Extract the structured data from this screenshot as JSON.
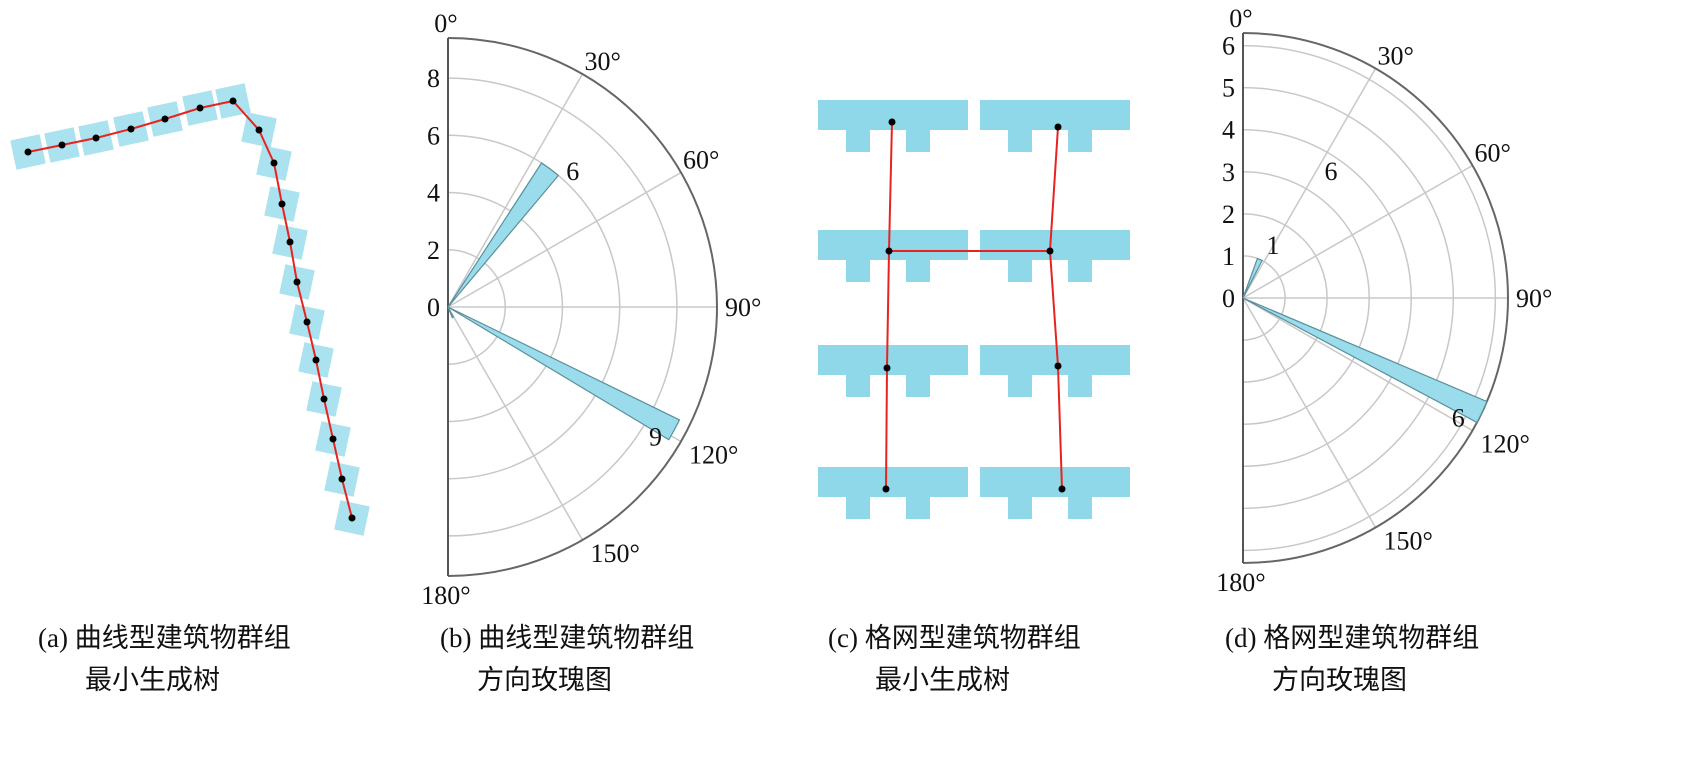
{
  "captions": {
    "a": {
      "line1": "(a) 曲线型建筑物群组",
      "line2": "最小生成树"
    },
    "b": {
      "line1": "(b) 曲线型建筑物群组",
      "line2": "方向玫瑰图"
    },
    "c": {
      "line1": "(c) 格网型建筑物群组",
      "line2": "最小生成树"
    },
    "d": {
      "line1": "(d) 格网型建筑物群组",
      "line2": "方向玫瑰图"
    }
  },
  "colors": {
    "building": "#8fd8ea",
    "tree_edge": "#e8231f",
    "node": "#000000",
    "rose_bar": "#9adcec",
    "grid": "#c8c8c8"
  },
  "chart_data": [
    {
      "type": "polar-rose",
      "panel": "b",
      "angle_range": [
        0,
        180
      ],
      "angle_ticks": [
        "0°",
        "30°",
        "60°",
        "90°",
        "120°",
        "150°",
        "180°"
      ],
      "radial_ticks": [
        "0",
        "2",
        "4",
        "6",
        "8"
      ],
      "rlim": [
        0,
        9.4
      ],
      "grid": true,
      "bars": [
        {
          "from": 33,
          "to": 40,
          "value": 6,
          "label": "6"
        },
        {
          "from": 116,
          "to": 121,
          "value": 9,
          "label": "9"
        },
        {
          "from": 152,
          "to": 158,
          "value": 0.4,
          "label": ""
        }
      ]
    },
    {
      "type": "polar-rose",
      "panel": "d",
      "angle_range": [
        0,
        180
      ],
      "angle_ticks": [
        "0°",
        "30°",
        "60°",
        "90°",
        "120°",
        "150°",
        "180°"
      ],
      "radial_ticks": [
        "0",
        "1",
        "2",
        "3",
        "4",
        "5",
        "6"
      ],
      "rlim": [
        0,
        6.3
      ],
      "grid": true,
      "bars": [
        {
          "from": 20,
          "to": 27,
          "value": 1,
          "label": "1"
        },
        {
          "from": 113,
          "to": 118,
          "value": 6.3,
          "label": "6"
        }
      ],
      "annotations": [
        {
          "text": "6",
          "angle": 30,
          "r": 3.9
        }
      ]
    }
  ]
}
